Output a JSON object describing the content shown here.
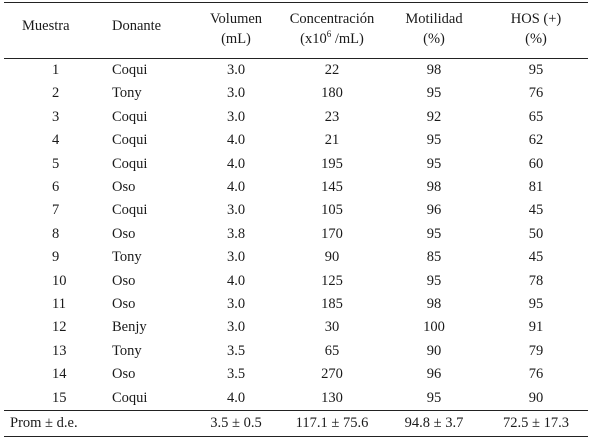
{
  "headers": {
    "muestra": "Muestra",
    "donante": "Donante",
    "volumen_line1": "Volumen",
    "volumen_line2": "(mL)",
    "concentracion_line1": "Concentración",
    "concentracion_line2_pre": "(x10",
    "concentracion_line2_sup": "6",
    "concentracion_line2_post": " /mL)",
    "motilidad_line1": "Motilidad",
    "motilidad_line2": "(%)",
    "hos_line1": "HOS (+)",
    "hos_line2": "(%)"
  },
  "rows": [
    {
      "muestra": "1",
      "donante": "Coqui",
      "volumen": "3.0",
      "concentracion": "22",
      "motilidad": "98",
      "hos": "95"
    },
    {
      "muestra": "2",
      "donante": "Tony",
      "volumen": "3.0",
      "concentracion": "180",
      "motilidad": "95",
      "hos": "76"
    },
    {
      "muestra": "3",
      "donante": "Coqui",
      "volumen": "3.0",
      "concentracion": "23",
      "motilidad": "92",
      "hos": "65"
    },
    {
      "muestra": "4",
      "donante": "Coqui",
      "volumen": "4.0",
      "concentracion": "21",
      "motilidad": "95",
      "hos": "62"
    },
    {
      "muestra": "5",
      "donante": "Coqui",
      "volumen": "4.0",
      "concentracion": "195",
      "motilidad": "95",
      "hos": "60"
    },
    {
      "muestra": "6",
      "donante": "Oso",
      "volumen": "4.0",
      "concentracion": "145",
      "motilidad": "98",
      "hos": "81"
    },
    {
      "muestra": "7",
      "donante": "Coqui",
      "volumen": "3.0",
      "concentracion": "105",
      "motilidad": "96",
      "hos": "45"
    },
    {
      "muestra": "8",
      "donante": "Oso",
      "volumen": "3.8",
      "concentracion": "170",
      "motilidad": "95",
      "hos": "50"
    },
    {
      "muestra": "9",
      "donante": "Tony",
      "volumen": "3.0",
      "concentracion": "90",
      "motilidad": "85",
      "hos": "45"
    },
    {
      "muestra": "10",
      "donante": "Oso",
      "volumen": "4.0",
      "concentracion": "125",
      "motilidad": "95",
      "hos": "78"
    },
    {
      "muestra": "11",
      "donante": "Oso",
      "volumen": "3.0",
      "concentracion": "185",
      "motilidad": "98",
      "hos": "95"
    },
    {
      "muestra": "12",
      "donante": "Benjy",
      "volumen": "3.0",
      "concentracion": "30",
      "motilidad": "100",
      "hos": "91"
    },
    {
      "muestra": "13",
      "donante": "Tony",
      "volumen": "3.5",
      "concentracion": "65",
      "motilidad": "90",
      "hos": "79"
    },
    {
      "muestra": "14",
      "donante": "Oso",
      "volumen": "3.5",
      "concentracion": "270",
      "motilidad": "96",
      "hos": "76"
    },
    {
      "muestra": "15",
      "donante": "Coqui",
      "volumen": "4.0",
      "concentracion": "130",
      "motilidad": "95",
      "hos": "90"
    }
  ],
  "footer": {
    "label": "Prom ± d.e.",
    "donante": "",
    "volumen": "3.5 ± 0.5",
    "concentracion": "117.1 ± 75.6",
    "motilidad": "94.8 ± 3.7",
    "hos": "72.5 ± 17.3"
  }
}
